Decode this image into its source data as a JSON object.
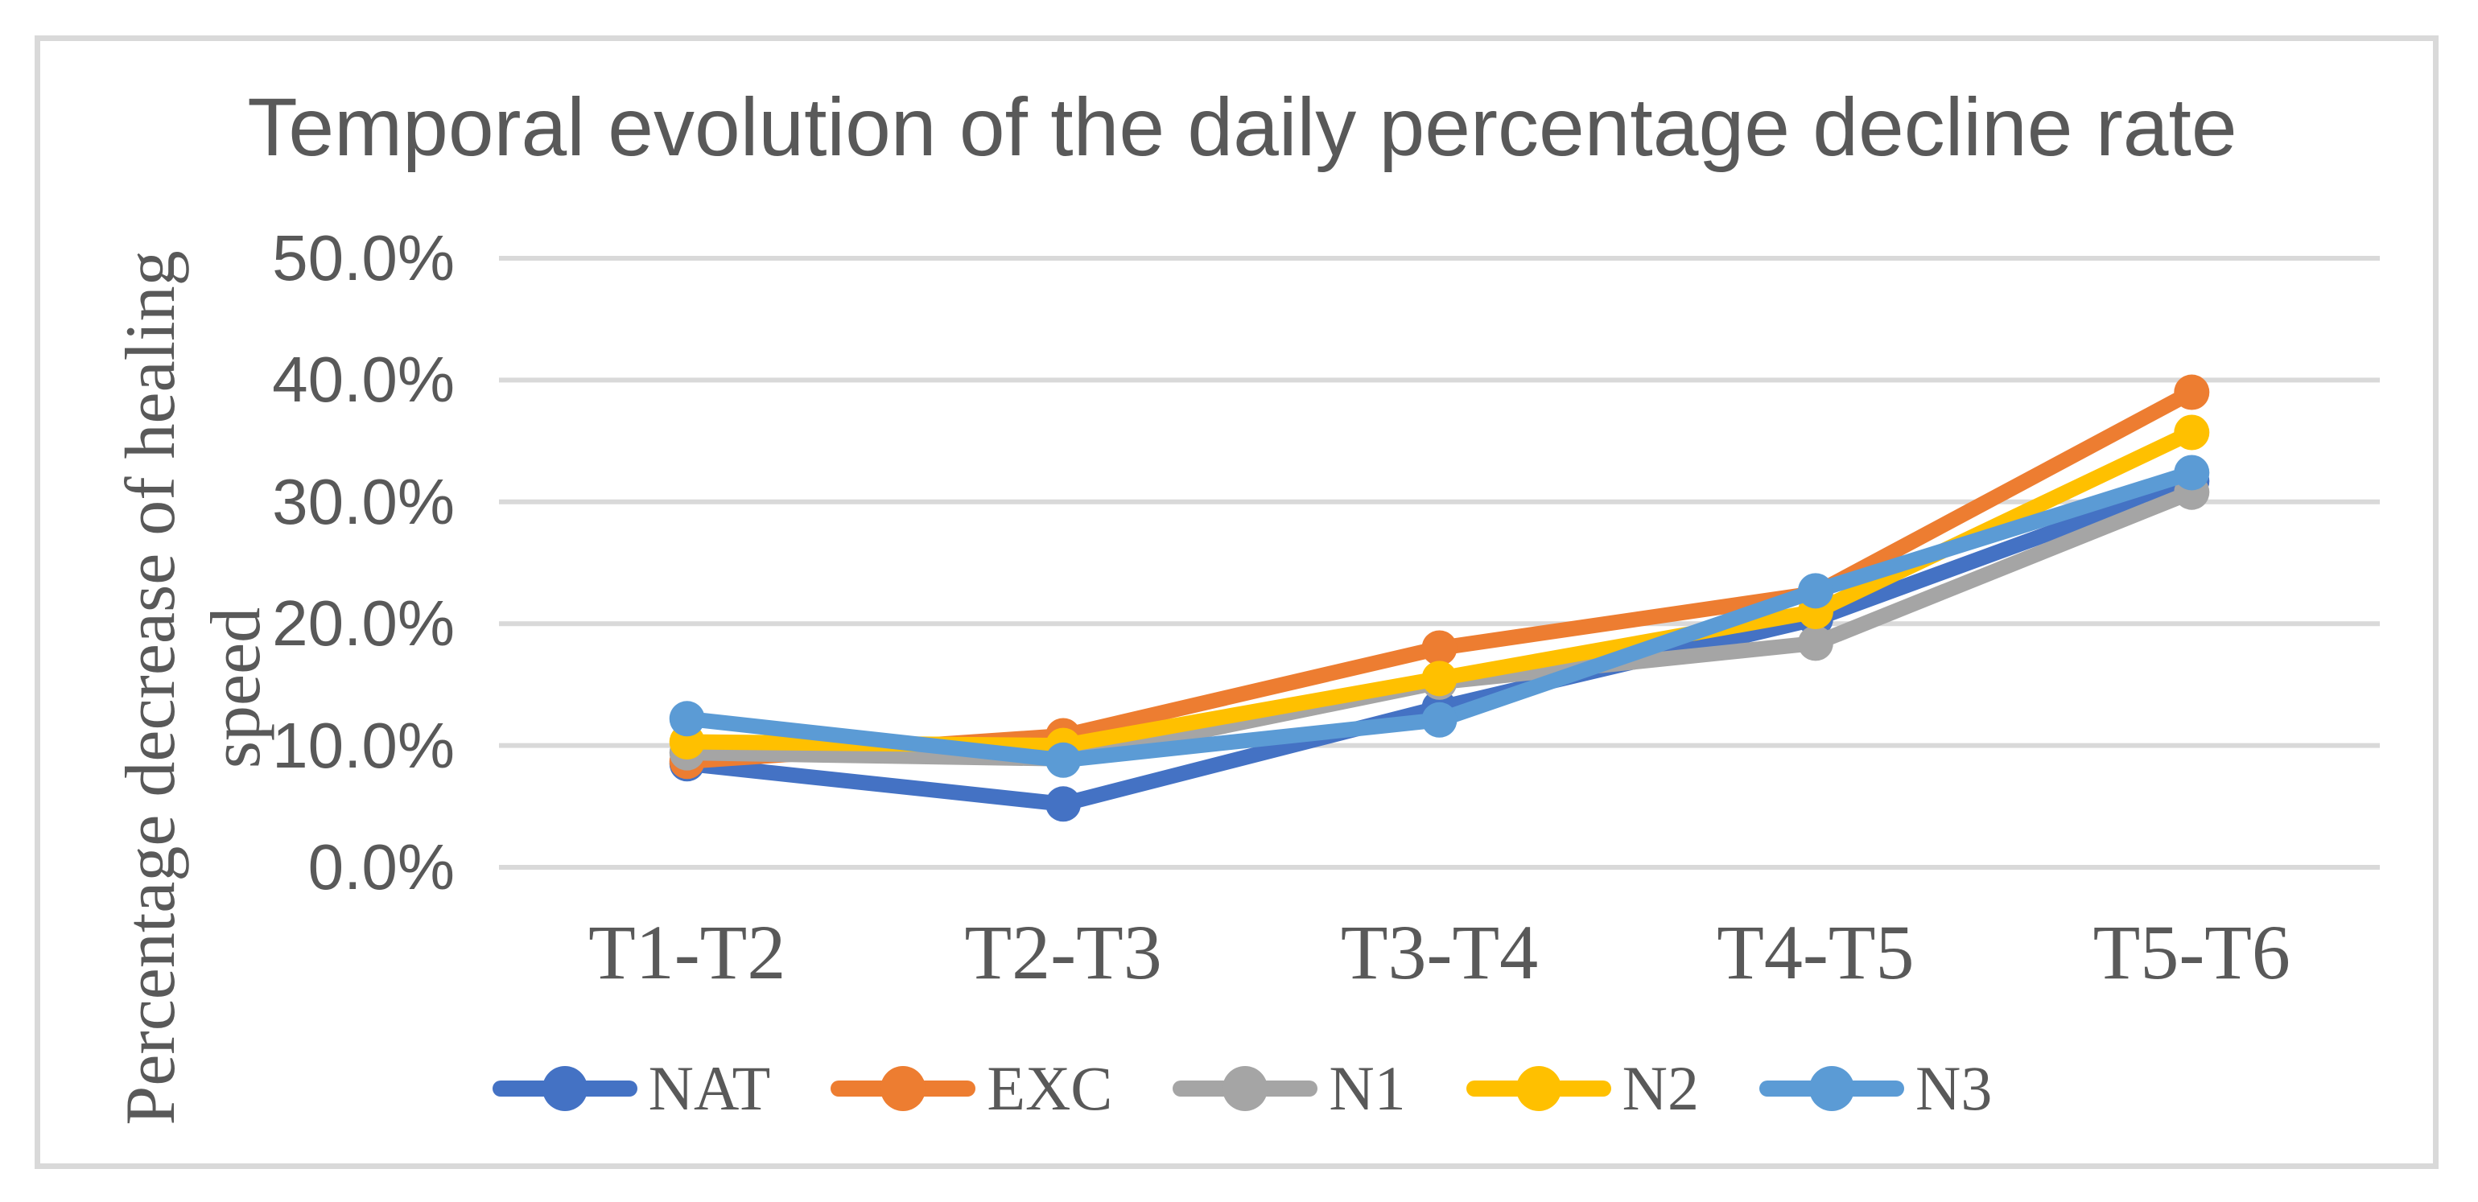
{
  "title": "Temporal evolution of the daily percentage decline rate",
  "y_axis_title": {
    "line1": "Percentage decrease of healing",
    "line2": "speed"
  },
  "colors": {
    "text": "#595959",
    "gridline": "#d9d9d9",
    "frame": "#d9d9d9",
    "NAT": "#4472c4",
    "EXC": "#ed7d31",
    "N1": "#a5a5a5",
    "N2": "#ffc000",
    "N3": "#5b9bd5"
  },
  "chart_data": {
    "type": "line",
    "title": "Temporal evolution of the daily percentage decline rate",
    "ylabel": "Percentage decrease of healing speed",
    "xlabel": "",
    "categories": [
      "T1-T2",
      "T2-T3",
      "T3-T4",
      "T4-T5",
      "T5-T6"
    ],
    "series": [
      {
        "name": "NAT",
        "color": "#4472c4",
        "values": [
          8.5,
          5.2,
          13.1,
          20.4,
          31.7
        ]
      },
      {
        "name": "EXC",
        "color": "#ed7d31",
        "values": [
          8.7,
          10.8,
          18.0,
          22.5,
          39.0
        ]
      },
      {
        "name": "N1",
        "color": "#a5a5a5",
        "values": [
          9.4,
          8.9,
          15.2,
          18.4,
          30.8
        ]
      },
      {
        "name": "N2",
        "color": "#ffc000",
        "values": [
          10.3,
          10.0,
          15.5,
          21.0,
          35.7
        ]
      },
      {
        "name": "N3",
        "color": "#5b9bd5",
        "values": [
          12.2,
          8.8,
          12.1,
          22.7,
          32.4
        ]
      }
    ],
    "ylim": [
      0,
      50
    ],
    "ytick_step": 10,
    "ytick_labels": [
      "0.0%",
      "10.0%",
      "20.0%",
      "30.0%",
      "40.0%",
      "50.0%"
    ],
    "grid": "horizontal",
    "legend_position": "bottom",
    "marker": "circle"
  }
}
